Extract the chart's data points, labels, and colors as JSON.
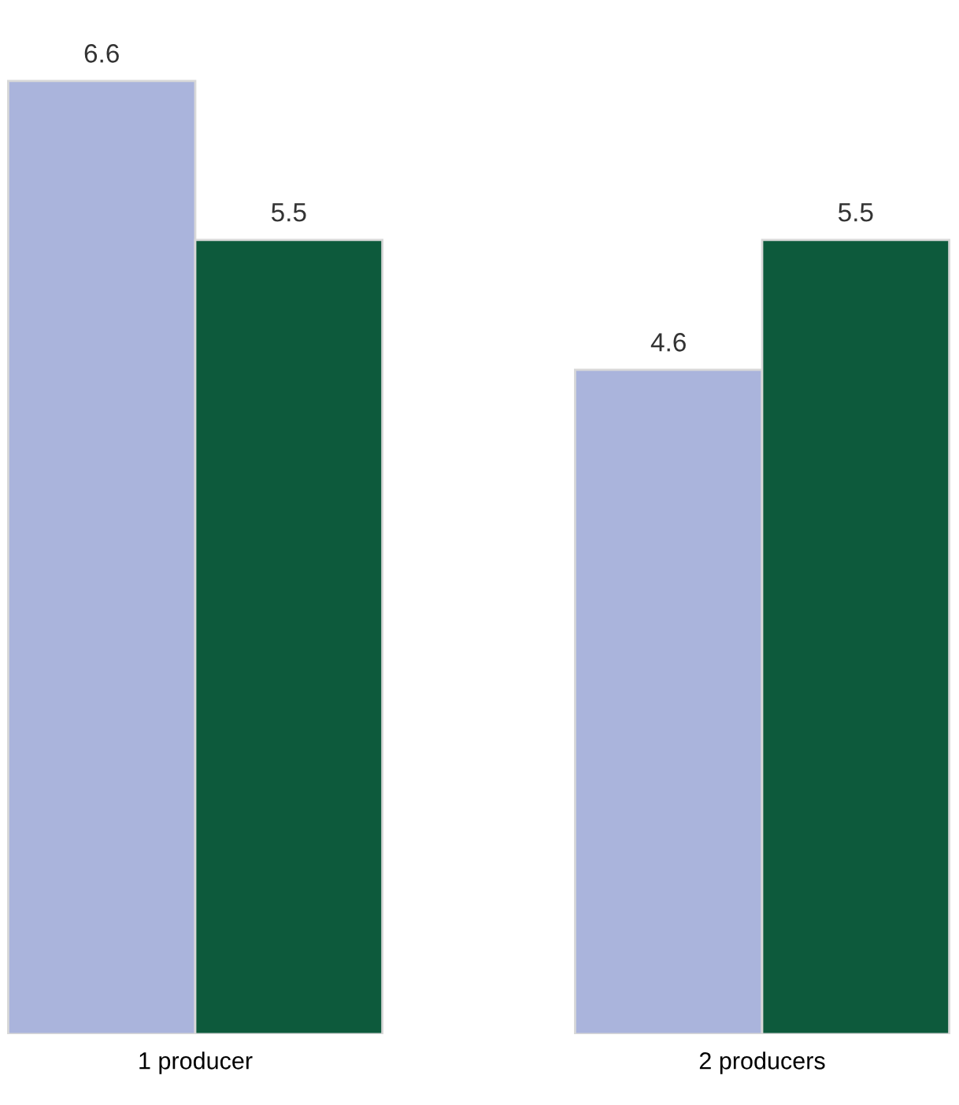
{
  "chart_data": {
    "type": "bar",
    "categories": [
      "1 producer",
      "2 producers"
    ],
    "series": [
      {
        "color": "#aab4dc",
        "values": [
          6.6,
          4.6
        ]
      },
      {
        "color": "#0d5a3c",
        "values": [
          5.5,
          5.5
        ]
      }
    ],
    "data_labels": true,
    "grid": false,
    "legend": false
  }
}
